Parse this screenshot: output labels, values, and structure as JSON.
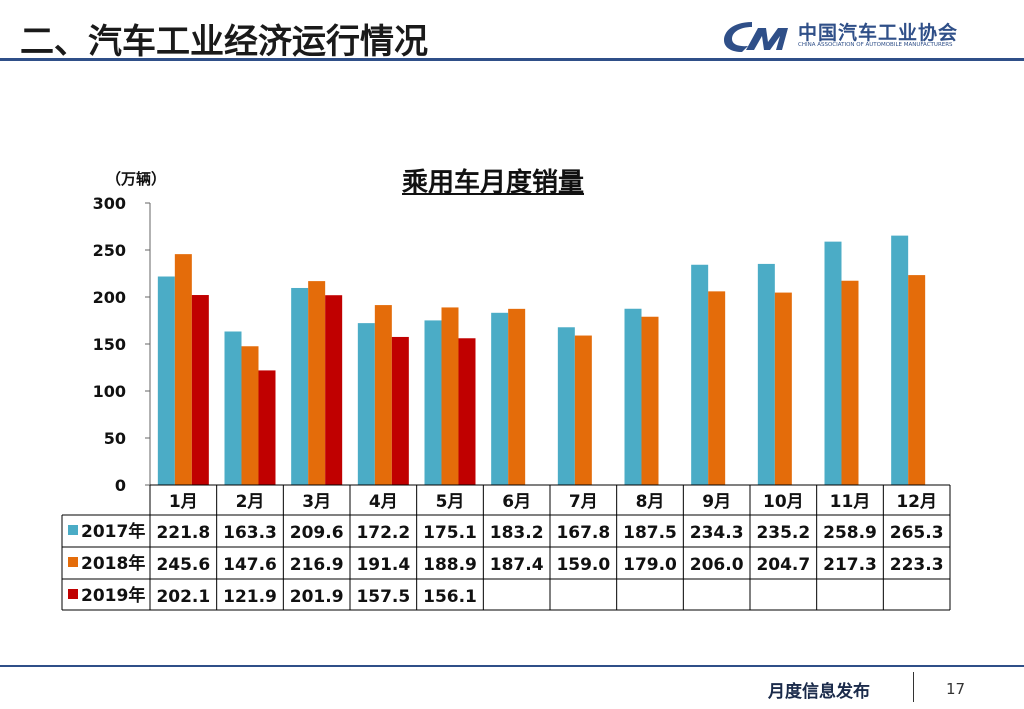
{
  "header": {
    "title": "二、汽车工业经济运行情况"
  },
  "logo": {
    "mark": "CM",
    "name_cn": "中国汽车工业协会",
    "name_en": "CHINA ASSOCIATION OF AUTOMOBILE MANUFACTURERS"
  },
  "chart_data": {
    "type": "bar",
    "title": "乘用车月度销量",
    "ylabel": "（万辆）",
    "xlabel": "",
    "ylim": [
      0,
      300
    ],
    "yticks": [
      0,
      50,
      100,
      150,
      200,
      250,
      300
    ],
    "categories": [
      "1月",
      "2月",
      "3月",
      "4月",
      "5月",
      "6月",
      "7月",
      "8月",
      "9月",
      "10月",
      "11月",
      "12月"
    ],
    "series": [
      {
        "name": "2017年",
        "color": "#4bacc6",
        "values": [
          221.8,
          163.3,
          209.6,
          172.2,
          175.1,
          183.2,
          167.8,
          187.5,
          234.3,
          235.2,
          258.9,
          265.3
        ]
      },
      {
        "name": "2018年",
        "color": "#e46c0a",
        "values": [
          245.6,
          147.6,
          216.9,
          191.4,
          188.9,
          187.4,
          159.0,
          179.0,
          206.0,
          204.7,
          217.3,
          223.3
        ]
      },
      {
        "name": "2019年",
        "color": "#c00000",
        "values": [
          202.1,
          121.9,
          201.9,
          157.5,
          156.1,
          null,
          null,
          null,
          null,
          null,
          null,
          null
        ]
      }
    ],
    "table_display": [
      [
        "221.8",
        "163.3",
        "209.6",
        "172.2",
        "175.1",
        "183.2",
        "167.8",
        "187.5",
        "234.3",
        "235.2",
        "258.9",
        "265.3"
      ],
      [
        "245.6",
        "147.6",
        "216.9",
        "191.4",
        "188.9",
        "187.4",
        "159.0",
        "179.0",
        "206.0",
        "204.7",
        "217.3",
        "223.3"
      ],
      [
        "202.1",
        "121.9",
        "201.9",
        "157.5",
        "156.1",
        "",
        "",
        "",
        "",
        "",
        "",
        ""
      ]
    ],
    "grid": false,
    "legend": "data-table-below"
  },
  "footer": {
    "text": "月度信息发布",
    "page": "17"
  }
}
